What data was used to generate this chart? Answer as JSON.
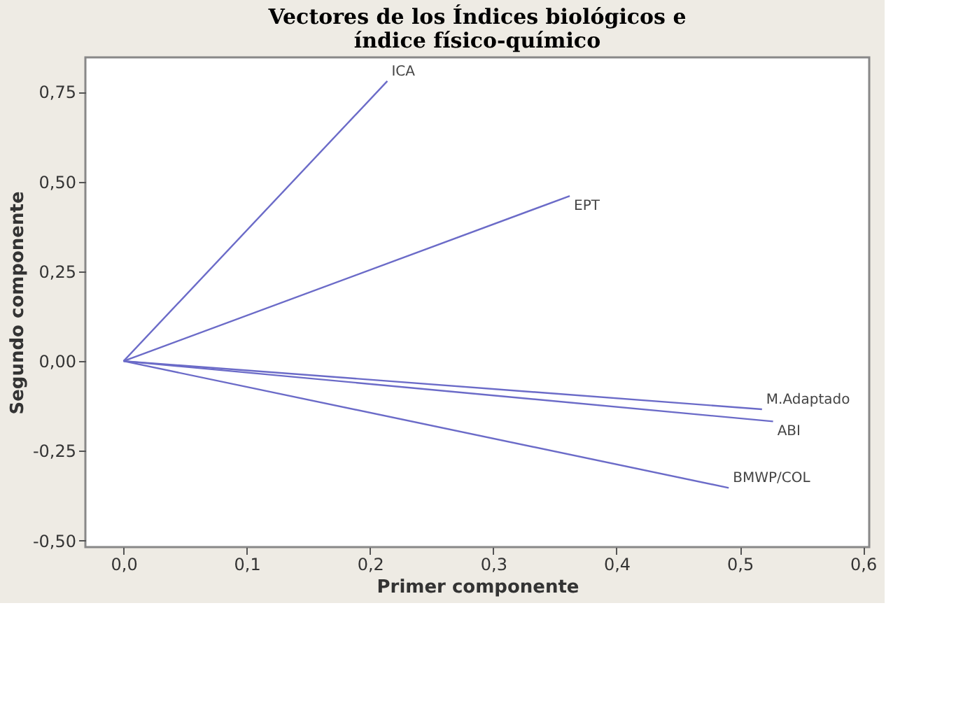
{
  "chart_data": {
    "type": "line",
    "title": "Vectores de los Índices biológicos e\níndice físico-químico",
    "xlabel": "Primer componente",
    "ylabel": "Segundo componente",
    "xlim": [
      -0.031,
      0.605
    ],
    "ylim": [
      -0.518,
      0.846
    ],
    "xticks": [
      {
        "value": 0.0,
        "label": "0,0"
      },
      {
        "value": 0.1,
        "label": "0,1"
      },
      {
        "value": 0.2,
        "label": "0,2"
      },
      {
        "value": 0.3,
        "label": "0,3"
      },
      {
        "value": 0.4,
        "label": "0,4"
      },
      {
        "value": 0.5,
        "label": "0,5"
      },
      {
        "value": 0.6,
        "label": "0,6"
      }
    ],
    "yticks": [
      {
        "value": -0.5,
        "label": "-0,50"
      },
      {
        "value": -0.25,
        "label": "-0,25"
      },
      {
        "value": 0.0,
        "label": "0,00"
      },
      {
        "value": 0.25,
        "label": "0,25"
      },
      {
        "value": 0.5,
        "label": "0,50"
      },
      {
        "value": 0.75,
        "label": "0,75"
      }
    ],
    "grid": false,
    "legend": false,
    "marker": "none",
    "line_style": "solid",
    "series": [
      {
        "name": "ICA",
        "color": "#6b6bc8",
        "x": [
          0,
          0.214
        ],
        "values": [
          0,
          0.78
        ]
      },
      {
        "name": "EPT",
        "color": "#6b6bc8",
        "x": [
          0,
          0.362
        ],
        "values": [
          0,
          0.46
        ]
      },
      {
        "name": "M.Adaptado",
        "color": "#6b6bc8",
        "x": [
          0,
          0.518
        ],
        "values": [
          0,
          -0.134
        ]
      },
      {
        "name": "ABI",
        "color": "#6b6bc8",
        "x": [
          0,
          0.527
        ],
        "values": [
          0,
          -0.168
        ]
      },
      {
        "name": "BMWP/COL",
        "color": "#6b6bc8",
        "x": [
          0,
          0.491
        ],
        "values": [
          0,
          -0.353
        ]
      }
    ]
  }
}
